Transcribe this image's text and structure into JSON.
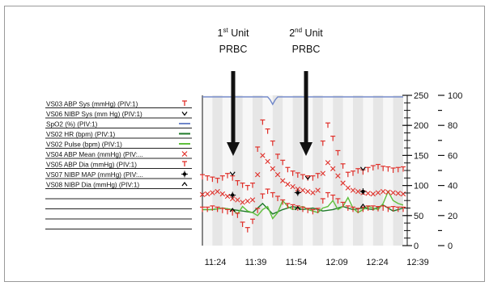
{
  "chart_data": {
    "type": "line",
    "title": "",
    "annotations": [
      {
        "line1": "1",
        "sup": "st",
        "line1_rest": " Unit",
        "line2": "PRBC",
        "x_time": "11:39"
      },
      {
        "line1": "2",
        "sup": "nd",
        "line1_rest": " Unit",
        "line2": "PRBC",
        "x_time": "12:06"
      }
    ],
    "x_ticks": [
      "11:24",
      "11:39",
      "11:54",
      "12:09",
      "12:24",
      "12:39"
    ],
    "x_range_minutes": [
      0,
      80
    ],
    "y_left_ticks": [
      250,
      200,
      150,
      100,
      50,
      0
    ],
    "y_left_range": [
      0,
      250
    ],
    "y_right_ticks": [
      100,
      80,
      60,
      40,
      20,
      0
    ],
    "y_right_range": [
      0,
      100
    ],
    "legend": [
      {
        "label": "VS03 ABP Sys (mmHg) (PIV:1)",
        "symbol": "T",
        "color": "#e0302a"
      },
      {
        "label": "VS06 NIBP Sys (mm Hg) (PIV:1)",
        "symbol": "v",
        "color": "#000000"
      },
      {
        "label": "SpO2 (%) (PIV:1)",
        "symbol": "line",
        "color": "#6f86c9"
      },
      {
        "label": "VS02 HR (bpm) (PIV:1)",
        "symbol": "line",
        "color": "#1f7a2a"
      },
      {
        "label": "VS02 Pulse (bpm) (PIV:1)",
        "symbol": "line",
        "color": "#5fbf3c"
      },
      {
        "label": "VS04 ABP Mean (mmHg) (PIV:...",
        "symbol": "x",
        "color": "#e0302a"
      },
      {
        "label": "VS05 ABP Dia (mmHg) (PIV:1)",
        "symbol": "T",
        "color": "#e0302a"
      },
      {
        "label": "VS07 NIBP MAP (mmHg) (PIV:...",
        "symbol": "cross",
        "color": "#000000"
      },
      {
        "label": "VS08 NIBP Dia (mmHg) (PIV:1)",
        "symbol": "^",
        "color": "#000000"
      },
      {
        "label": "",
        "symbol": "",
        "color": ""
      },
      {
        "label": "",
        "symbol": "",
        "color": ""
      },
      {
        "label": "",
        "symbol": "",
        "color": ""
      },
      {
        "label": "",
        "symbol": "",
        "color": ""
      }
    ],
    "series": [
      {
        "name": "VS03 ABP Sys (mmHg) (PIV:1)",
        "marker": "T",
        "color": "#e0302a",
        "axis": "left",
        "x": [
          0,
          2,
          4,
          6,
          8,
          10,
          12,
          14,
          16,
          18,
          20,
          22,
          24,
          26,
          28,
          30,
          32,
          34,
          36,
          38,
          40,
          42,
          44,
          46,
          48,
          50,
          52,
          54,
          56,
          58,
          60,
          62,
          64,
          66,
          68,
          70,
          72,
          74,
          76,
          78,
          80
        ],
        "y": [
          114,
          112,
          110,
          108,
          112,
          116,
          112,
          104,
          100,
          96,
          100,
          160,
          205,
          190,
          170,
          148,
          138,
          126,
          120,
          117,
          114,
          112,
          112,
          116,
          170,
          200,
          178,
          154,
          132,
          118,
          120,
          124,
          122,
          126,
          129,
          131,
          128,
          127,
          125,
          126,
          127
        ]
      },
      {
        "name": "VS06 NIBP Sys (mm Hg) (PIV:1)",
        "marker": "v",
        "color": "#000000",
        "axis": "left",
        "x": [
          12,
          42,
          64
        ],
        "y": [
          120,
          113,
          128
        ]
      },
      {
        "name": "SpO2 (%) (PIV:1)",
        "marker": "line",
        "color": "#6f86c9",
        "axis": "right",
        "x": [
          0,
          10,
          18,
          26,
          27,
          28,
          29,
          30,
          40,
          50,
          60,
          70,
          80
        ],
        "y": [
          99,
          99,
          99,
          99,
          97,
          94,
          97,
          99,
          99,
          99,
          99,
          99,
          99
        ]
      },
      {
        "name": "VS02 HR (bpm) (PIV:1)",
        "marker": "line",
        "color": "#1f7a2a",
        "axis": "right",
        "x": [
          0,
          4,
          8,
          12,
          16,
          20,
          24,
          28,
          32,
          36,
          40,
          44,
          48,
          52,
          56,
          60,
          64,
          68,
          72,
          76,
          80
        ],
        "y": [
          24,
          24,
          25,
          24,
          23,
          22,
          28,
          21,
          24,
          26,
          24,
          25,
          23,
          24,
          26,
          24,
          25,
          24,
          27,
          23,
          25
        ]
      },
      {
        "name": "VS02 Pulse (bpm) (PIV:1)",
        "marker": "line",
        "color": "#5fbf3c",
        "axis": "right",
        "x": [
          0,
          4,
          8,
          12,
          14,
          16,
          18,
          20,
          22,
          24,
          26,
          28,
          30,
          32,
          34,
          36,
          38,
          40,
          42,
          44,
          46,
          48,
          50,
          52,
          54,
          56,
          58,
          60,
          62,
          64,
          66,
          68,
          70,
          72,
          74,
          76,
          78,
          80
        ],
        "y": [
          24,
          24,
          25,
          24,
          21,
          26,
          23,
          22,
          20,
          24,
          26,
          18,
          22,
          30,
          26,
          24,
          25,
          26,
          24,
          23,
          22,
          25,
          26,
          30,
          24,
          26,
          32,
          25,
          22,
          24,
          26,
          25,
          24,
          28,
          36,
          30,
          28,
          27
        ]
      },
      {
        "name": "VS04 ABP Mean (mmHg) (PIV:...",
        "marker": "x",
        "color": "#e0302a",
        "axis": "left",
        "x": [
          0,
          2,
          4,
          6,
          8,
          10,
          12,
          14,
          16,
          18,
          20,
          22,
          24,
          26,
          28,
          30,
          32,
          34,
          36,
          38,
          40,
          42,
          44,
          46,
          48,
          50,
          52,
          54,
          56,
          58,
          60,
          62,
          64,
          66,
          68,
          70,
          72,
          74,
          76,
          78,
          80
        ],
        "y": [
          85,
          86,
          88,
          90,
          86,
          82,
          78,
          76,
          72,
          74,
          76,
          118,
          150,
          140,
          128,
          118,
          108,
          102,
          98,
          94,
          92,
          90,
          88,
          92,
          120,
          138,
          128,
          116,
          104,
          96,
          92,
          90,
          88,
          87,
          86,
          88,
          90,
          89,
          88,
          87,
          86
        ]
      },
      {
        "name": "VS05 ABP Dia (mmHg) (PIV:1)",
        "marker": "T",
        "color": "#e0302a",
        "axis": "left",
        "x": [
          0,
          2,
          4,
          6,
          8,
          10,
          12,
          14,
          16,
          18,
          20,
          22,
          24,
          26,
          28,
          30,
          32,
          34,
          36,
          38,
          40,
          42,
          44,
          46,
          48,
          50,
          52,
          54,
          56,
          58,
          60,
          62,
          64,
          66,
          68,
          70,
          72,
          74,
          76,
          78,
          80
        ],
        "y": [
          60,
          60,
          62,
          60,
          58,
          56,
          54,
          50,
          35,
          26,
          40,
          58,
          82,
          90,
          84,
          78,
          72,
          66,
          64,
          62,
          60,
          58,
          56,
          58,
          74,
          84,
          80,
          74,
          68,
          62,
          60,
          58,
          60,
          62,
          62,
          61,
          62,
          60,
          61,
          60,
          60
        ]
      },
      {
        "name": "VS07 NIBP MAP (mmHg) (PIV:...",
        "marker": "cross",
        "color": "#000000",
        "axis": "left",
        "x": [
          12,
          38,
          64
        ],
        "y": [
          84,
          88,
          90
        ]
      },
      {
        "name": "VS08 NIBP Dia (mmHg) (PIV:1)",
        "marker": "^",
        "color": "#000000",
        "axis": "left",
        "x": [
          12,
          38,
          64
        ],
        "y": [
          59,
          62,
          66
        ]
      }
    ],
    "grid": "vertical-bands",
    "legend_placement": "left"
  }
}
